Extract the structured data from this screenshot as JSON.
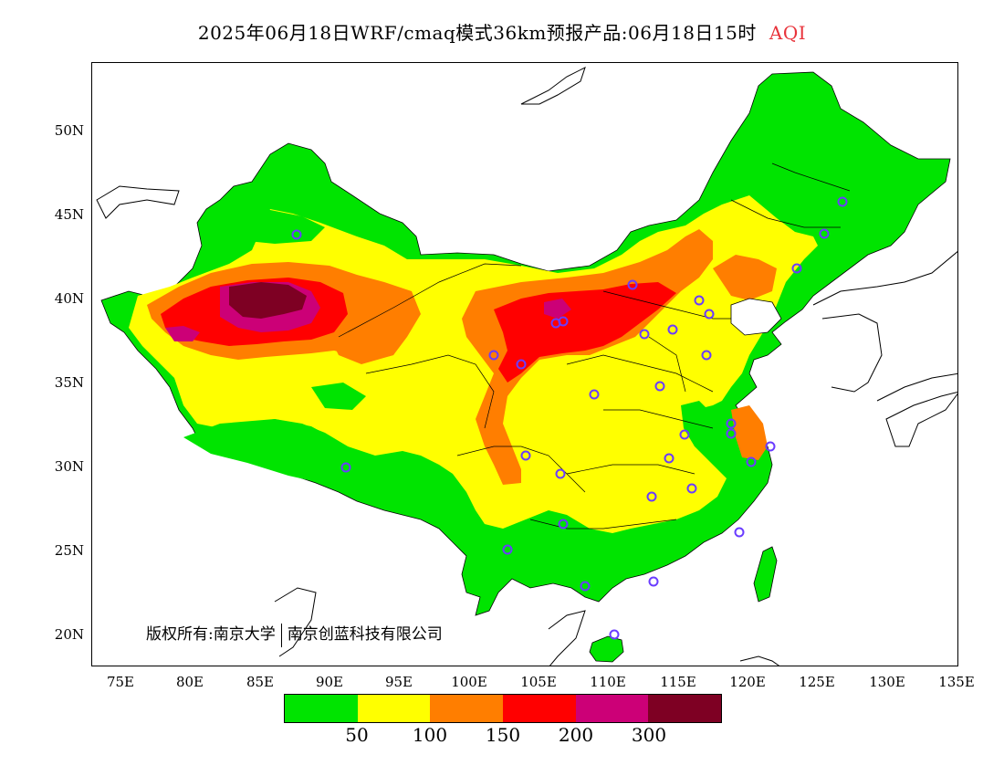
{
  "title": {
    "main": "2025年06月18日WRF/cmaq模式36km预报产品:06月18日15时",
    "tag": "AQI"
  },
  "axes": {
    "y_ticks": [
      {
        "label": "50N",
        "value": 50
      },
      {
        "label": "45N",
        "value": 45
      },
      {
        "label": "40N",
        "value": 40
      },
      {
        "label": "35N",
        "value": 35
      },
      {
        "label": "30N",
        "value": 30
      },
      {
        "label": "25N",
        "value": 25
      },
      {
        "label": "20N",
        "value": 20
      }
    ],
    "x_ticks": [
      {
        "label": "75E",
        "value": 75
      },
      {
        "label": "80E",
        "value": 80
      },
      {
        "label": "85E",
        "value": 85
      },
      {
        "label": "90E",
        "value": 90
      },
      {
        "label": "95E",
        "value": 95
      },
      {
        "label": "100E",
        "value": 100
      },
      {
        "label": "105E",
        "value": 105
      },
      {
        "label": "110E",
        "value": 110
      },
      {
        "label": "115E",
        "value": 115
      },
      {
        "label": "120E",
        "value": 120
      },
      {
        "label": "125E",
        "value": 125
      },
      {
        "label": "130E",
        "value": 130
      },
      {
        "label": "135E",
        "value": 135
      }
    ]
  },
  "copyright": {
    "prefix": "版权所有:",
    "org1": "南京大学",
    "org2": "南京创蓝科技有限公司"
  },
  "legend": {
    "colors": [
      "#00e400",
      "#ffff00",
      "#ff7e00",
      "#ff0000",
      "#cc0077",
      "#7e0023"
    ],
    "labels": [
      "50",
      "100",
      "150",
      "200",
      "300"
    ]
  },
  "colors": {
    "green": "#00e400",
    "yellow": "#ffff00",
    "orange": "#ff7e00",
    "red": "#ff0000",
    "purple": "#cc0077",
    "maroon": "#7e0023",
    "station_marker": "#6a3cff"
  }
}
